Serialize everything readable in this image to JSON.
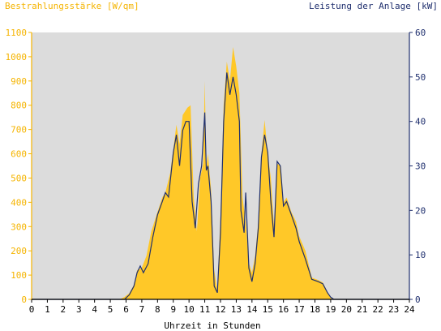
{
  "chart_data": {
    "type": "area",
    "left_axis_label": "Bestrahlungsstärke [W/qm]",
    "right_axis_label": "Leistung der Anlage [kW]",
    "xlabel": "Uhrzeit in Stunden",
    "xlim": [
      0,
      24
    ],
    "ylim_left": [
      0,
      1100
    ],
    "ylim_right": [
      0,
      60
    ],
    "x_ticks": [
      0,
      1,
      2,
      3,
      4,
      5,
      6,
      7,
      8,
      9,
      10,
      11,
      12,
      13,
      14,
      15,
      16,
      17,
      18,
      19,
      20,
      21,
      22,
      23,
      24
    ],
    "y_ticks_left": [
      0,
      100,
      200,
      300,
      400,
      500,
      600,
      700,
      800,
      900,
      1000,
      1100
    ],
    "y_ticks_right": [
      0,
      10,
      20,
      30,
      40,
      50,
      60
    ],
    "grid": false,
    "series": [
      {
        "name": "Bestrahlungsstärke",
        "axis": "left",
        "kind": "area",
        "color": "#ffc828",
        "points": [
          [
            0,
            0
          ],
          [
            5.6,
            0
          ],
          [
            5.9,
            10
          ],
          [
            6.2,
            25
          ],
          [
            6.5,
            60
          ],
          [
            6.7,
            120
          ],
          [
            7.0,
            130
          ],
          [
            7.3,
            180
          ],
          [
            7.6,
            280
          ],
          [
            8.0,
            360
          ],
          [
            8.3,
            420
          ],
          [
            8.5,
            440
          ],
          [
            8.8,
            520
          ],
          [
            9.0,
            620
          ],
          [
            9.2,
            720
          ],
          [
            9.4,
            640
          ],
          [
            9.6,
            760
          ],
          [
            9.9,
            790
          ],
          [
            10.1,
            800
          ],
          [
            10.3,
            420
          ],
          [
            10.5,
            280
          ],
          [
            10.7,
            500
          ],
          [
            10.9,
            560
          ],
          [
            11.0,
            900
          ],
          [
            11.1,
            540
          ],
          [
            11.2,
            600
          ],
          [
            11.4,
            450
          ],
          [
            11.6,
            120
          ],
          [
            11.8,
            40
          ],
          [
            12.0,
            350
          ],
          [
            12.2,
            800
          ],
          [
            12.4,
            980
          ],
          [
            12.6,
            900
          ],
          [
            12.8,
            1040
          ],
          [
            13.0,
            960
          ],
          [
            13.2,
            850
          ],
          [
            13.4,
            420
          ],
          [
            13.6,
            320
          ],
          [
            13.8,
            150
          ],
          [
            14.0,
            110
          ],
          [
            14.2,
            180
          ],
          [
            14.4,
            320
          ],
          [
            14.6,
            600
          ],
          [
            14.8,
            740
          ],
          [
            15.0,
            600
          ],
          [
            15.2,
            500
          ],
          [
            15.4,
            300
          ],
          [
            15.6,
            560
          ],
          [
            15.8,
            550
          ],
          [
            16.0,
            400
          ],
          [
            16.2,
            420
          ],
          [
            16.5,
            360
          ],
          [
            16.8,
            320
          ],
          [
            17.0,
            260
          ],
          [
            17.4,
            200
          ],
          [
            17.8,
            90
          ],
          [
            18.2,
            80
          ],
          [
            18.5,
            70
          ],
          [
            18.8,
            30
          ],
          [
            19.0,
            5
          ],
          [
            19.2,
            0
          ],
          [
            24,
            0
          ]
        ]
      },
      {
        "name": "Leistung",
        "axis": "right",
        "kind": "line",
        "color": "#1f2f6e",
        "points": [
          [
            0,
            0
          ],
          [
            5.9,
            0
          ],
          [
            6.2,
            1
          ],
          [
            6.5,
            3
          ],
          [
            6.7,
            6
          ],
          [
            6.9,
            7.5
          ],
          [
            7.1,
            6
          ],
          [
            7.4,
            8
          ],
          [
            7.7,
            14
          ],
          [
            8.0,
            19
          ],
          [
            8.3,
            22
          ],
          [
            8.5,
            24
          ],
          [
            8.7,
            23
          ],
          [
            9.0,
            33
          ],
          [
            9.2,
            37
          ],
          [
            9.4,
            30
          ],
          [
            9.6,
            38
          ],
          [
            9.8,
            40
          ],
          [
            10.0,
            40
          ],
          [
            10.2,
            22
          ],
          [
            10.4,
            16
          ],
          [
            10.6,
            26
          ],
          [
            10.8,
            30
          ],
          [
            11.0,
            42
          ],
          [
            11.1,
            29
          ],
          [
            11.2,
            30
          ],
          [
            11.4,
            22
          ],
          [
            11.6,
            3
          ],
          [
            11.8,
            1.5
          ],
          [
            12.0,
            15
          ],
          [
            12.2,
            40
          ],
          [
            12.4,
            51
          ],
          [
            12.6,
            46
          ],
          [
            12.8,
            50
          ],
          [
            13.0,
            46
          ],
          [
            13.2,
            40
          ],
          [
            13.3,
            20
          ],
          [
            13.5,
            15
          ],
          [
            13.6,
            24
          ],
          [
            13.8,
            7
          ],
          [
            14.0,
            4
          ],
          [
            14.2,
            8
          ],
          [
            14.4,
            16
          ],
          [
            14.6,
            32
          ],
          [
            14.8,
            37
          ],
          [
            15.0,
            33
          ],
          [
            15.2,
            22
          ],
          [
            15.4,
            14
          ],
          [
            15.6,
            31
          ],
          [
            15.8,
            30
          ],
          [
            16.0,
            21
          ],
          [
            16.2,
            22
          ],
          [
            16.5,
            19
          ],
          [
            16.8,
            16
          ],
          [
            17.0,
            13
          ],
          [
            17.4,
            9
          ],
          [
            17.8,
            4.5
          ],
          [
            18.2,
            4
          ],
          [
            18.5,
            3.5
          ],
          [
            18.8,
            1.5
          ],
          [
            19.0,
            0.5
          ],
          [
            19.2,
            0
          ],
          [
            24,
            0
          ]
        ]
      }
    ]
  },
  "colors": {
    "plot_background": "#dcdcdc",
    "left_axis": "#f5b400",
    "right_axis": "#1f2f6e",
    "x_axis": "#000000"
  }
}
